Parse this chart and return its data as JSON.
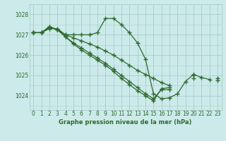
{
  "title": "Graphe pression niveau de la mer (hPa)",
  "bg_color": "#cceaea",
  "grid_color": "#aacccc",
  "line_color": "#2d6a2d",
  "ylim": [
    1023.3,
    1028.5
  ],
  "xlim": [
    -0.5,
    23.5
  ],
  "yticks": [
    1024,
    1025,
    1026,
    1027,
    1028
  ],
  "xticks": [
    0,
    1,
    2,
    3,
    4,
    5,
    6,
    7,
    8,
    9,
    10,
    11,
    12,
    13,
    14,
    15,
    16,
    17,
    18,
    19,
    20,
    21,
    22,
    23
  ],
  "series": [
    [
      1027.1,
      1027.1,
      1027.35,
      1027.25,
      1027.0,
      1027.0,
      1027.0,
      1027.0,
      1027.1,
      1027.8,
      1027.8,
      1027.5,
      1027.1,
      1026.6,
      1025.8,
      1024.1,
      1023.85,
      1023.9,
      1024.1,
      1024.7,
      1025.05,
      1024.9,
      1024.8,
      null
    ],
    [
      1027.1,
      1027.1,
      1027.4,
      1027.25,
      1026.9,
      1026.55,
      1026.25,
      1026.0,
      1025.75,
      1025.5,
      1025.2,
      1024.85,
      1024.55,
      1024.25,
      1024.0,
      1023.75,
      1024.35,
      1024.4,
      null,
      null,
      1025.05,
      null,
      null,
      null
    ],
    [
      1027.1,
      1027.1,
      1027.4,
      1027.25,
      1026.9,
      1026.6,
      1026.35,
      1026.1,
      1025.85,
      1025.6,
      1025.3,
      1025.0,
      1024.7,
      1024.4,
      1024.1,
      1023.85,
      1024.3,
      1024.3,
      null,
      null,
      1024.85,
      null,
      null,
      1024.75
    ],
    [
      1027.1,
      1027.1,
      1027.3,
      1027.3,
      1027.0,
      1026.85,
      1026.7,
      1026.55,
      1026.4,
      1026.2,
      1026.0,
      1025.75,
      1025.5,
      1025.25,
      1025.05,
      1024.85,
      1024.65,
      1024.5,
      null,
      null,
      1025.05,
      null,
      null,
      1024.85
    ]
  ]
}
